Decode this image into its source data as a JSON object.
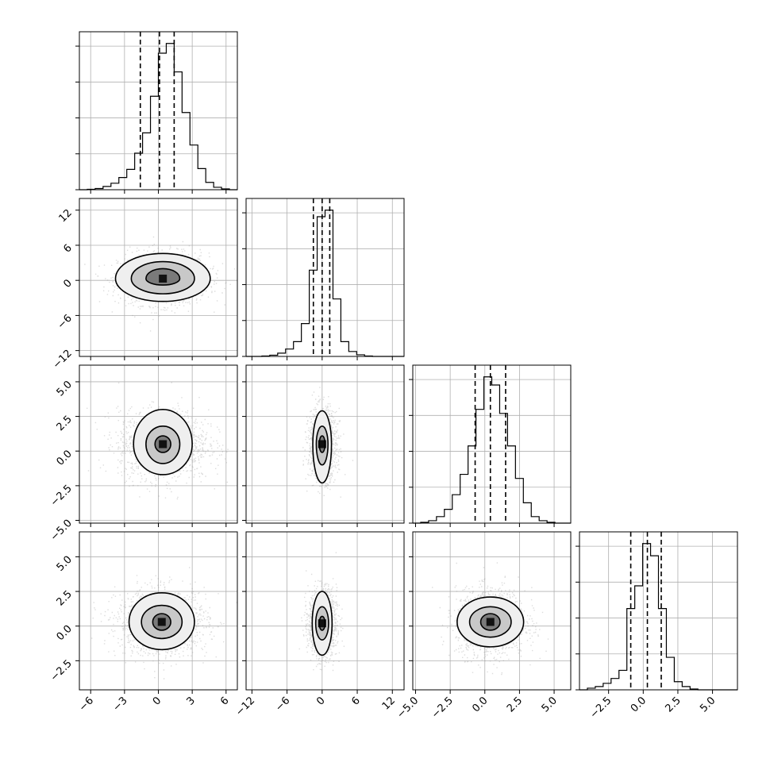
{
  "chart_data": {
    "type": "corner",
    "grid": true,
    "dimensions": [
      {
        "range": [
          -7,
          7
        ],
        "ticks": [
          -6,
          -3,
          0,
          3,
          6
        ],
        "tick_labels": [
          "−6",
          "−3",
          "0",
          "3",
          "6"
        ],
        "hist_bins": [
          -7,
          -6.3,
          -5.6,
          -4.9,
          -4.2,
          -3.5,
          -2.8,
          -2.1,
          -1.4,
          -0.7,
          0,
          0.7,
          1.4,
          2.1,
          2.8,
          3.5,
          4.2,
          4.9,
          5.6,
          6.3,
          7
        ],
        "hist_counts": [
          0,
          0.5,
          1.5,
          4,
          8,
          15,
          25,
          45,
          70,
          115,
          168,
          180,
          145,
          95,
          55,
          26,
          9,
          3,
          1,
          0
        ],
        "quantiles": [
          -1.6,
          0.1,
          1.4
        ]
      },
      {
        "range": [
          -13,
          14
        ],
        "ticks": [
          -12,
          -6,
          0,
          6,
          12
        ],
        "tick_labels": [
          "−12",
          "−6",
          "0",
          "6",
          "12"
        ],
        "hist_bins": [
          -13,
          -11.65,
          -10.3,
          -8.95,
          -7.6,
          -6.25,
          -4.9,
          -3.55,
          -2.2,
          -0.85,
          0.5,
          1.85,
          3.2,
          4.55,
          5.9,
          7.25,
          8.6,
          9.95,
          11.3,
          12.65,
          14
        ],
        "hist_counts": [
          0,
          0,
          0.5,
          1.5,
          4,
          9,
          18,
          40,
          105,
          170,
          178,
          70,
          18,
          6,
          2,
          0.5,
          0,
          0,
          0,
          0
        ],
        "quantiles": [
          -1.5,
          0,
          1.3
        ]
      },
      {
        "range": [
          -5.2,
          6.2
        ],
        "ticks": [
          -5,
          -2.5,
          0,
          2.5,
          5
        ],
        "tick_labels": [
          "−5.0",
          "−2.5",
          "0.0",
          "2.5",
          "5.0"
        ],
        "hist_bins": [
          -5.2,
          -4.63,
          -4.06,
          -3.49,
          -2.92,
          -2.35,
          -1.78,
          -1.21,
          -0.64,
          -0.07,
          0.5,
          1.07,
          1.64,
          2.21,
          2.78,
          3.35,
          3.92,
          4.49,
          5.06,
          5.63,
          6.2
        ],
        "hist_counts": [
          0,
          1,
          3,
          8,
          17,
          35,
          60,
          95,
          140,
          180,
          170,
          135,
          95,
          55,
          25,
          8,
          3,
          1,
          0,
          0
        ],
        "quantiles": [
          -0.7,
          0.4,
          1.5
        ]
      },
      {
        "range": [
          -4.6,
          6.8
        ],
        "ticks": [
          -2.5,
          0,
          2.5,
          5
        ],
        "tick_labels": [
          "−2.5",
          "0.0",
          "2.5",
          "5.0"
        ],
        "hist_bins": [
          -4.6,
          -4.03,
          -3.46,
          -2.89,
          -2.32,
          -1.75,
          -1.18,
          -0.61,
          -0.04,
          0.53,
          1.1,
          1.67,
          2.24,
          2.81,
          3.38,
          3.95,
          4.52,
          5.09,
          5.66,
          6.23,
          6.8
        ],
        "hist_counts": [
          0,
          2,
          4,
          8,
          14,
          24,
          100,
          128,
          180,
          165,
          100,
          40,
          10,
          4,
          1,
          0,
          0,
          0,
          0,
          0
        ],
        "quantiles": [
          -0.9,
          0.3,
          1.3
        ]
      }
    ],
    "pairs": [
      {
        "row": 1,
        "col": 0,
        "center": [
          0.4,
          0.3
        ],
        "levels": [
          [
            1.5,
            1.7,
            1.1
          ],
          [
            2.8,
            2.9,
            2.6
          ],
          [
            4.2,
            4.3,
            3.9
          ]
        ],
        "sigma": [
          2.0,
          2.2
        ]
      },
      {
        "row": 2,
        "col": 0,
        "center": [
          0.4,
          0.5
        ],
        "levels": [
          [
            0.7,
            0.6,
            0.6
          ],
          [
            1.5,
            1.3,
            1.4
          ],
          [
            2.6,
            2.5,
            2.2
          ]
        ],
        "sigma": [
          2.0,
          1.25
        ]
      },
      {
        "row": 2,
        "col": 1,
        "center": [
          0,
          0.5
        ],
        "levels": [
          [
            0.5,
            0.6,
            0.6
          ],
          [
            1.0,
            1.3,
            1.5
          ],
          [
            1.6,
            2.4,
            2.8
          ]
        ],
        "sigma": [
          1.2,
          1.25
        ]
      },
      {
        "row": 3,
        "col": 0,
        "center": [
          0.3,
          0.3
        ],
        "levels": [
          [
            0.8,
            0.6,
            0.6
          ],
          [
            1.8,
            1.2,
            1.2
          ],
          [
            2.9,
            2.1,
            2.0
          ]
        ],
        "sigma": [
          2.0,
          1.2
        ]
      },
      {
        "row": 3,
        "col": 1,
        "center": [
          0,
          0.2
        ],
        "levels": [
          [
            0.5,
            0.5,
            0.5
          ],
          [
            1.1,
            1.2,
            1.2
          ],
          [
            1.7,
            2.3,
            2.3
          ]
        ],
        "sigma": [
          1.2,
          1.2
        ]
      },
      {
        "row": 3,
        "col": 2,
        "center": [
          0.4,
          0.3
        ],
        "levels": [
          [
            0.7,
            0.6,
            0.6
          ],
          [
            1.5,
            1.1,
            1.1
          ],
          [
            2.4,
            1.8,
            1.8
          ]
        ],
        "sigma": [
          1.25,
          1.2
        ]
      }
    ],
    "colors": {
      "ink": "#000000",
      "grid": "#b0b0b0",
      "points": "#9a9a9a"
    }
  }
}
